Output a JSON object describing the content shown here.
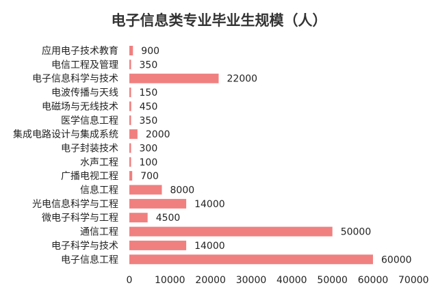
{
  "chart_data": {
    "type": "bar",
    "orientation": "horizontal",
    "title": "电子信息类专业毕业生规模（人）",
    "xlabel": "",
    "ylabel": "",
    "categories": [
      "应用电子技术教育",
      "电信工程及管理",
      "电子信息科学与技术",
      "电波传播与天线",
      "电磁场与无线技术",
      "医学信息工程",
      "集成电路设计与集成系统",
      "电子封装技术",
      "水声工程",
      "广播电视工程",
      "信息工程",
      "光电信息科学与工程",
      "微电子科学与工程",
      "通信工程",
      "电子科学与技术",
      "电子信息工程"
    ],
    "values": [
      900,
      350,
      22000,
      150,
      450,
      350,
      2000,
      300,
      100,
      700,
      8000,
      14000,
      4500,
      50000,
      14000,
      60000
    ],
    "value_labels": [
      "900",
      "350",
      "22000",
      "150",
      "450",
      "350",
      "2000",
      "300",
      "100",
      "700",
      "8000",
      "14000",
      "4500",
      "50000",
      "14000",
      "60000"
    ],
    "xlim": [
      0,
      70000
    ],
    "xticks": [
      "0",
      "10000",
      "20000",
      "30000",
      "40000",
      "50000",
      "60000",
      "70000"
    ],
    "xtick_values": [
      0,
      10000,
      20000,
      30000,
      40000,
      50000,
      60000,
      70000
    ],
    "bar_color": "#f08080",
    "grid": false,
    "legend": "none"
  }
}
